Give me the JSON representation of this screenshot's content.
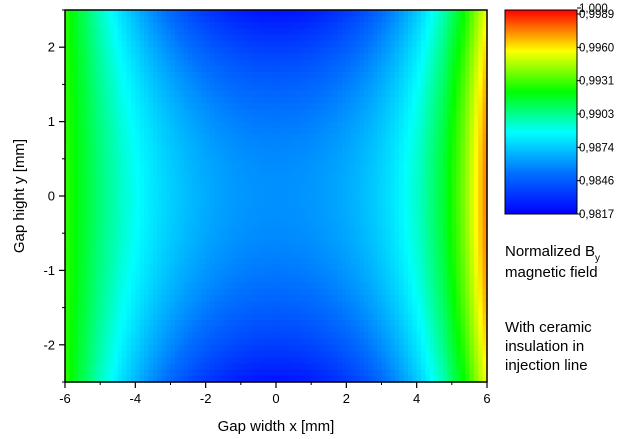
{
  "chart_data": {
    "type": "heatmap",
    "title": "",
    "xlabel": "Gap width x [mm]",
    "ylabel": "Gap hight y [mm]",
    "xlim": [
      -6,
      6
    ],
    "ylim": [
      -2.5,
      2.5
    ],
    "x_ticks": [
      "-6",
      "-4",
      "-2",
      "0",
      "2",
      "4",
      "6"
    ],
    "y_ticks": [
      "2",
      "1",
      "0",
      "-1",
      "-2"
    ],
    "colorbar": {
      "min": 0.9817,
      "max": 1.0,
      "labels": [
        "1,000",
        "0,9989",
        "0,9960",
        "0,9931",
        "0,9903",
        "0,9874",
        "0,9846",
        "0,9817"
      ],
      "colors": [
        "#0000ff",
        "#0070ff",
        "#00ffff",
        "#00ff00",
        "#ffff00",
        "#ff0000"
      ]
    },
    "field": {
      "description_values": {
        "center_x0_y0": 0.9862,
        "x0_y_pm2_5": 0.9823,
        "x_minus6_y0": 0.9935,
        "x_plus6_y0": 0.9995,
        "corners": 0.9905
      }
    }
  },
  "legend_title_prefix": "Normalized B",
  "legend_title_sub": "y",
  "legend_title_line2": "magnetic field",
  "note_lines": [
    "With ceramic",
    "insulation in",
    "injection line"
  ]
}
